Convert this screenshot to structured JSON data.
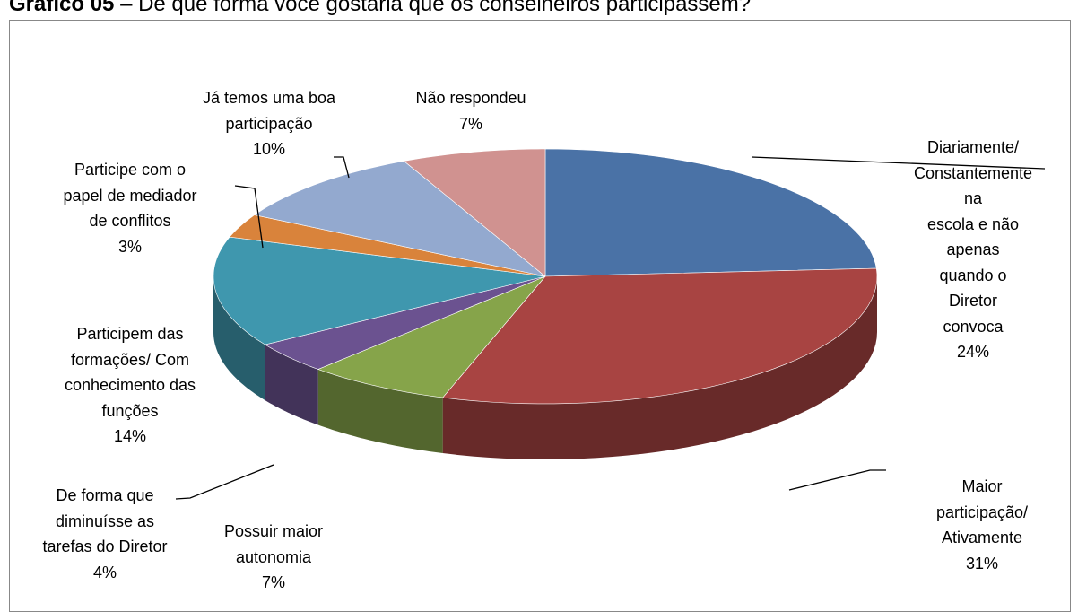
{
  "chart_data": {
    "type": "pie3d",
    "title_prefix": "Gráfico 05",
    "title": "– De que forma você gostaria que os conselheiros participassem?",
    "categories": [
      "Diariamente/\nConstantemente na\nescola e não apenas\nquando o Diretor\nconvoca",
      "Maior participação/\nAtivamente",
      "Possuir maior\nautonomia",
      "De forma que\ndiminuísse as\ntarefas do Diretor",
      "Participem das\nformações/ Com\nconhecimento das\nfunções",
      "Participe com o\npapel de mediador\nde conflitos",
      "Já temos uma boa\nparticipação",
      "Não respondeu"
    ],
    "values": [
      24,
      31,
      7,
      4,
      14,
      3,
      10,
      7
    ],
    "value_labels": [
      "24%",
      "31%",
      "7%",
      "4%",
      "14%",
      "3%",
      "10%",
      "7%"
    ],
    "colors": [
      "#4a72a6",
      "#a84442",
      "#86a44a",
      "#6b5290",
      "#3f97ae",
      "#d9833b",
      "#93a9cf",
      "#d09290"
    ]
  }
}
